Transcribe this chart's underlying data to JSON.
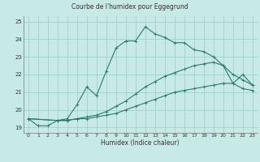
{
  "title": "Courbe de l'humidex pour Eggegrund",
  "xlabel": "Humidex (Indice chaleur)",
  "bg_color": "#c8eae6",
  "grid_color": "#a0d0cc",
  "line_color": "#2a7a6a",
  "xlim": [
    -0.5,
    23.5
  ],
  "ylim": [
    18.7,
    25.3
  ],
  "yticks": [
    19,
    20,
    21,
    22,
    23,
    24,
    25
  ],
  "xticks": [
    0,
    1,
    2,
    3,
    4,
    5,
    6,
    7,
    8,
    9,
    10,
    11,
    12,
    13,
    14,
    15,
    16,
    17,
    18,
    19,
    20,
    21,
    22,
    23
  ],
  "series": [
    {
      "x": [
        0,
        1,
        2,
        3,
        4,
        5,
        6,
        7,
        8,
        9,
        10,
        11,
        12,
        13,
        14,
        15,
        16,
        17,
        18,
        19,
        20,
        21,
        22,
        23
      ],
      "y": [
        19.5,
        19.1,
        19.1,
        19.4,
        19.5,
        20.3,
        21.3,
        20.8,
        22.2,
        23.5,
        23.9,
        23.9,
        24.7,
        24.3,
        24.1,
        23.8,
        23.8,
        23.4,
        23.3,
        23.0,
        22.5,
        22.0,
        21.7,
        21.4
      ]
    },
    {
      "x": [
        0,
        3,
        4,
        5,
        6,
        7,
        8,
        9,
        10,
        11,
        12,
        13,
        14,
        15,
        16,
        17,
        18,
        19,
        20,
        21,
        22,
        23
      ],
      "y": [
        19.5,
        19.4,
        19.4,
        19.5,
        19.6,
        19.7,
        19.9,
        20.2,
        20.5,
        20.9,
        21.3,
        21.6,
        21.9,
        22.1,
        22.3,
        22.5,
        22.6,
        22.7,
        22.5,
        21.5,
        22.0,
        21.4
      ]
    },
    {
      "x": [
        0,
        3,
        4,
        5,
        6,
        7,
        8,
        9,
        10,
        11,
        12,
        13,
        14,
        15,
        16,
        17,
        18,
        19,
        20,
        21,
        22,
        23
      ],
      "y": [
        19.5,
        19.4,
        19.4,
        19.5,
        19.5,
        19.6,
        19.7,
        19.8,
        20.0,
        20.2,
        20.4,
        20.6,
        20.8,
        21.0,
        21.1,
        21.2,
        21.3,
        21.4,
        21.5,
        21.5,
        21.2,
        21.1
      ]
    }
  ]
}
